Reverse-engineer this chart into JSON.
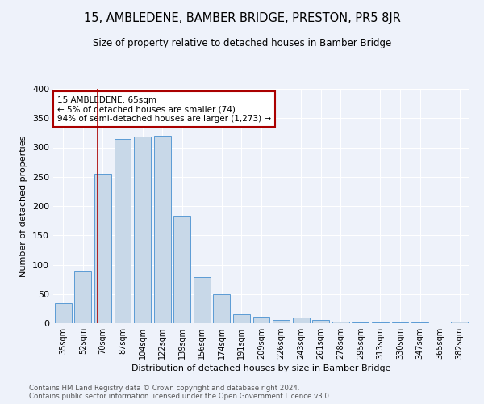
{
  "title": "15, AMBLEDENE, BAMBER BRIDGE, PRESTON, PR5 8JR",
  "subtitle": "Size of property relative to detached houses in Bamber Bridge",
  "xlabel": "Distribution of detached houses by size in Bamber Bridge",
  "ylabel": "Number of detached properties",
  "categories": [
    "35sqm",
    "52sqm",
    "70sqm",
    "87sqm",
    "104sqm",
    "122sqm",
    "139sqm",
    "156sqm",
    "174sqm",
    "191sqm",
    "209sqm",
    "226sqm",
    "243sqm",
    "261sqm",
    "278sqm",
    "295sqm",
    "313sqm",
    "330sqm",
    "347sqm",
    "365sqm",
    "382sqm"
  ],
  "values": [
    35,
    88,
    255,
    315,
    318,
    320,
    183,
    78,
    50,
    15,
    11,
    6,
    10,
    5,
    3,
    2,
    1,
    1,
    1,
    0,
    3
  ],
  "bar_color": "#c8d8e8",
  "bar_edge_color": "#5b9bd5",
  "vline_color": "#aa0000",
  "annotation_text": "15 AMBLEDENE: 65sqm\n← 5% of detached houses are smaller (74)\n94% of semi-detached houses are larger (1,273) →",
  "annotation_box_color": "#ffffff",
  "annotation_box_edge": "#aa0000",
  "background_color": "#eef2fa",
  "grid_color": "#ffffff",
  "footer_line1": "Contains HM Land Registry data © Crown copyright and database right 2024.",
  "footer_line2": "Contains public sector information licensed under the Open Government Licence v3.0.",
  "ylim": [
    0,
    400
  ],
  "yticks": [
    0,
    50,
    100,
    150,
    200,
    250,
    300,
    350,
    400
  ],
  "title_fontsize": 10.5,
  "subtitle_fontsize": 8.5
}
